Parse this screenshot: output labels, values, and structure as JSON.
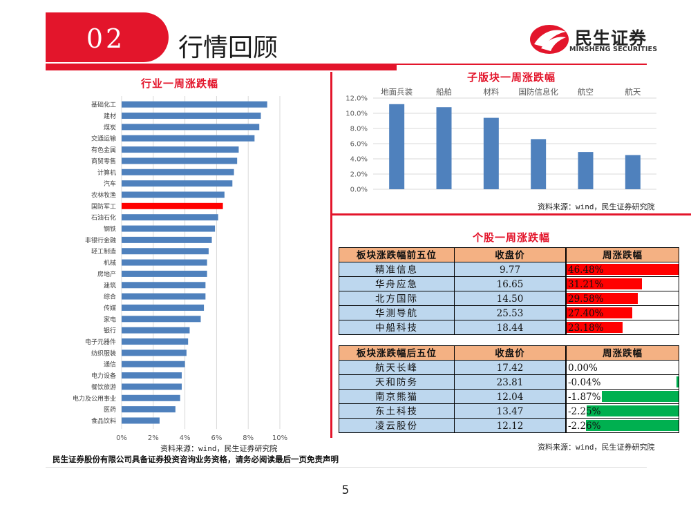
{
  "header": {
    "section_number": "02",
    "title": "行情回顾",
    "logo_cn": "民生证券",
    "logo_en": "MINSHENG SECURITIES"
  },
  "colors": {
    "brand_red": "#e3152b",
    "bar_blue": "#4f81bd",
    "bar_highlight": "#ff0000",
    "table_header": "#f4b183",
    "table_row": "#bdd7ee",
    "positive_fill": "#ff0000",
    "negative_fill": "#00b050"
  },
  "industry_chart": {
    "title": "行业一周涨跌幅",
    "source": "资料来源：wind，民生证券研究院",
    "highlight": "国防军工",
    "chart_data": {
      "type": "bar",
      "orientation": "horizontal",
      "categories": [
        "基础化工",
        "建材",
        "煤炭",
        "交通运输",
        "有色金属",
        "商贸零售",
        "计算机",
        "汽车",
        "农林牧渔",
        "国防军工",
        "石油石化",
        "钢铁",
        "非银行金融",
        "轻工制造",
        "机械",
        "房地产",
        "建筑",
        "综合",
        "传媒",
        "家电",
        "银行",
        "电子元器件",
        "纺织服装",
        "通信",
        "电力设备",
        "餐饮旅游",
        "电力及公用事业",
        "医药",
        "食品饮料"
      ],
      "values": [
        9.2,
        8.8,
        8.7,
        8.4,
        7.4,
        7.3,
        7.1,
        7.0,
        6.5,
        6.4,
        6.1,
        5.9,
        5.7,
        5.5,
        5.4,
        5.4,
        5.3,
        5.3,
        5.2,
        5.0,
        4.3,
        4.2,
        4.1,
        4.0,
        3.8,
        3.8,
        3.7,
        3.4,
        2.4
      ],
      "xticks": [
        "0%",
        "2%",
        "4%",
        "6%",
        "8%",
        "10%"
      ],
      "xlim": [
        0,
        10
      ],
      "grid": true
    }
  },
  "sub_sector_chart": {
    "title": "子版块一周涨跌幅",
    "source": "资料来源：wind，民生证券研究院",
    "chart_data": {
      "type": "bar",
      "categories": [
        "地面兵装",
        "船舶",
        "材料",
        "国防信息化",
        "航空",
        "航天"
      ],
      "values": [
        11.2,
        10.8,
        9.4,
        6.6,
        4.9,
        4.5
      ],
      "yticks": [
        "0.0%",
        "2.0%",
        "4.0%",
        "6.0%",
        "8.0%",
        "10.0%",
        "12.0%"
      ],
      "ylim": [
        0,
        12
      ],
      "grid": true,
      "category_labels_position": "top"
    }
  },
  "stocks": {
    "title": "个股一周涨跌幅",
    "source": "资料来源：wind，民生证券研究院",
    "top": {
      "headers": [
        "板块涨跌幅前五位",
        "收盘价",
        "周涨跌幅"
      ],
      "rows": [
        {
          "name": "精准信息",
          "close": "9.77",
          "change": "46.48%",
          "value": 46.48
        },
        {
          "name": "华舟应急",
          "close": "16.65",
          "change": "31.21%",
          "value": 31.21
        },
        {
          "name": "北方国际",
          "close": "14.50",
          "change": "29.58%",
          "value": 29.58
        },
        {
          "name": "华测导航",
          "close": "25.53",
          "change": "27.40%",
          "value": 27.4
        },
        {
          "name": "中船科技",
          "close": "18.44",
          "change": "23.18%",
          "value": 23.18
        }
      ]
    },
    "bottom": {
      "headers": [
        "板块涨跌幅后五位",
        "收盘价",
        "周涨跌幅"
      ],
      "rows": [
        {
          "name": "航天长峰",
          "close": "17.42",
          "change": "0.00%",
          "value": 0.0
        },
        {
          "name": "天和防务",
          "close": "23.81",
          "change": "-0.04%",
          "value": -0.04
        },
        {
          "name": "南京熊猫",
          "close": "12.04",
          "change": "-1.87%",
          "value": -1.87
        },
        {
          "name": "东土科技",
          "close": "13.47",
          "change": "-2.25%",
          "value": -2.25
        },
        {
          "name": "凌云股份",
          "close": "12.12",
          "change": "-2.26%",
          "value": -2.26
        }
      ]
    }
  },
  "footer": {
    "disclaimer": "民生证券股份有限公司具备证券投资咨询业务资格，请务必阅读最后一页免责声明",
    "page_number": "5"
  }
}
